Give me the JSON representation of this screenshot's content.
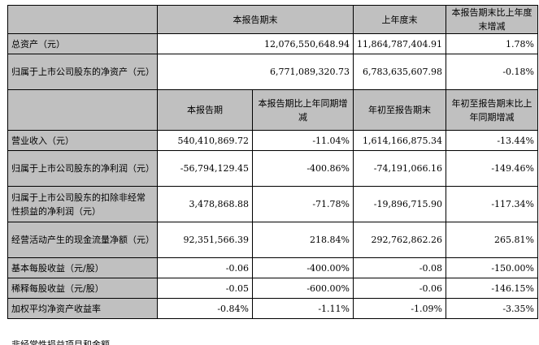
{
  "header1": {
    "col_current_period_end": "本报告期末",
    "col_last_year_end": "上年度末",
    "col_change": "本报告期末比上年度末增减"
  },
  "balance_rows": [
    {
      "label": "总资产（元）",
      "current": "12,076,550,648.94",
      "last_year": "11,864,787,404.91",
      "change": "1.78%"
    },
    {
      "label": "归属于上市公司股东的净资产（元）",
      "current": "6,771,089,320.73",
      "last_year": "6,783,635,607.98",
      "change": "-0.18%"
    }
  ],
  "header2": {
    "col_period": "本报告期",
    "col_period_yoy": "本报告期比上年同期增减",
    "col_ytd": "年初至报告期末",
    "col_ytd_yoy": "年初至报告期末比上年同期增减"
  },
  "income_rows": [
    {
      "label": "营业收入（元）",
      "period": "540,410,869.72",
      "period_yoy": "-11.04%",
      "ytd": "1,614,166,875.34",
      "ytd_yoy": "-13.44%"
    },
    {
      "label": "归属于上市公司股东的净利润（元）",
      "period": "-56,794,129.45",
      "period_yoy": "-400.86%",
      "ytd": "-74,191,066.16",
      "ytd_yoy": "-149.46%"
    },
    {
      "label": "归属于上市公司股东的扣除非经常性损益的净利润（元）",
      "period": "3,478,868.88",
      "period_yoy": "-71.78%",
      "ytd": "-19,896,715.90",
      "ytd_yoy": "-117.34%"
    },
    {
      "label": "经营活动产生的现金流量净额（元）",
      "period": "92,351,566.39",
      "period_yoy": "218.84%",
      "ytd": "292,762,862.26",
      "ytd_yoy": "265.81%"
    },
    {
      "label": "基本每股收益（元/股）",
      "period": "-0.06",
      "period_yoy": "-400.00%",
      "ytd": "-0.08",
      "ytd_yoy": "-150.00%"
    },
    {
      "label": "稀释每股收益（元/股）",
      "period": "-0.05",
      "period_yoy": "-600.00%",
      "ytd": "-0.06",
      "ytd_yoy": "-146.15%"
    },
    {
      "label": "加权平均净资产收益率",
      "period": "-0.84%",
      "period_yoy": "-1.11%",
      "ytd": "-1.09%",
      "ytd_yoy": "-3.35%"
    }
  ],
  "footer_fragment": "非经常性损益项目和金额"
}
